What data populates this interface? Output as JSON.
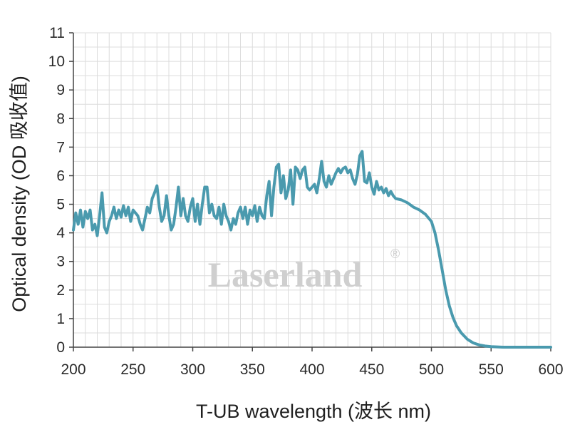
{
  "chart_data": {
    "type": "line",
    "xlabel": "T-UB wavelength (波长 nm)",
    "ylabel": "Optical density (OD 吸收值)",
    "xlim": [
      200,
      600
    ],
    "ylim": [
      0,
      11
    ],
    "x_ticks": [
      "200",
      "250",
      "300",
      "350",
      "400",
      "450",
      "500",
      "550",
      "600"
    ],
    "y_ticks": [
      "0",
      "1",
      "2",
      "3",
      "4",
      "5",
      "6",
      "7",
      "8",
      "9",
      "10",
      "11"
    ],
    "grid": true,
    "line_color": "#4a9aae",
    "grid_color": "#dcdcdc",
    "watermark": {
      "text": "Laserland",
      "mark": "®"
    },
    "series": [
      {
        "values": [
          [
            200,
            4.1
          ],
          [
            202,
            4.7
          ],
          [
            204,
            4.3
          ],
          [
            206,
            4.8
          ],
          [
            208,
            4.2
          ],
          [
            210,
            4.75
          ],
          [
            212,
            4.5
          ],
          [
            214,
            4.8
          ],
          [
            216,
            4.1
          ],
          [
            218,
            4.3
          ],
          [
            220,
            3.9
          ],
          [
            222,
            4.6
          ],
          [
            224,
            5.4
          ],
          [
            226,
            4.2
          ],
          [
            228,
            4.0
          ],
          [
            230,
            4.4
          ],
          [
            232,
            4.6
          ],
          [
            234,
            4.9
          ],
          [
            236,
            4.5
          ],
          [
            238,
            4.8
          ],
          [
            240,
            4.55
          ],
          [
            242,
            4.95
          ],
          [
            244,
            4.6
          ],
          [
            246,
            4.9
          ],
          [
            248,
            4.4
          ],
          [
            250,
            4.8
          ],
          [
            252,
            4.7
          ],
          [
            254,
            4.6
          ],
          [
            256,
            4.3
          ],
          [
            258,
            4.1
          ],
          [
            260,
            4.5
          ],
          [
            262,
            4.9
          ],
          [
            264,
            4.7
          ],
          [
            266,
            5.2
          ],
          [
            268,
            5.4
          ],
          [
            270,
            5.65
          ],
          [
            272,
            4.9
          ],
          [
            274,
            4.4
          ],
          [
            276,
            4.6
          ],
          [
            278,
            5.3
          ],
          [
            280,
            4.6
          ],
          [
            282,
            4.1
          ],
          [
            284,
            4.3
          ],
          [
            286,
            4.9
          ],
          [
            288,
            5.6
          ],
          [
            290,
            4.6
          ],
          [
            292,
            5.2
          ],
          [
            294,
            4.6
          ],
          [
            296,
            4.4
          ],
          [
            298,
            4.9
          ],
          [
            300,
            5.2
          ],
          [
            302,
            4.4
          ],
          [
            304,
            5.0
          ],
          [
            306,
            4.3
          ],
          [
            308,
            5.0
          ],
          [
            310,
            5.6
          ],
          [
            312,
            5.6
          ],
          [
            314,
            4.7
          ],
          [
            316,
            5.0
          ],
          [
            318,
            4.6
          ],
          [
            320,
            4.5
          ],
          [
            322,
            4.9
          ],
          [
            324,
            4.3
          ],
          [
            326,
            5.0
          ],
          [
            328,
            4.6
          ],
          [
            330,
            4.4
          ],
          [
            332,
            4.1
          ],
          [
            334,
            4.5
          ],
          [
            336,
            4.3
          ],
          [
            338,
            4.7
          ],
          [
            340,
            4.9
          ],
          [
            342,
            4.5
          ],
          [
            344,
            4.9
          ],
          [
            346,
            4.3
          ],
          [
            348,
            4.8
          ],
          [
            350,
            4.6
          ],
          [
            352,
            4.95
          ],
          [
            354,
            4.4
          ],
          [
            356,
            4.9
          ],
          [
            358,
            4.6
          ],
          [
            360,
            4.5
          ],
          [
            362,
            5.3
          ],
          [
            364,
            5.8
          ],
          [
            366,
            4.6
          ],
          [
            368,
            5.6
          ],
          [
            370,
            6.3
          ],
          [
            372,
            6.4
          ],
          [
            374,
            5.4
          ],
          [
            376,
            6.0
          ],
          [
            378,
            5.2
          ],
          [
            380,
            5.5
          ],
          [
            382,
            6.2
          ],
          [
            384,
            5.0
          ],
          [
            386,
            6.3
          ],
          [
            388,
            6.2
          ],
          [
            390,
            5.9
          ],
          [
            392,
            6.2
          ],
          [
            394,
            6.3
          ],
          [
            396,
            5.6
          ],
          [
            398,
            5.5
          ],
          [
            400,
            5.6
          ],
          [
            402,
            5.7
          ],
          [
            404,
            5.4
          ],
          [
            406,
            5.9
          ],
          [
            408,
            6.5
          ],
          [
            410,
            5.8
          ],
          [
            412,
            5.6
          ],
          [
            414,
            6.0
          ],
          [
            416,
            5.7
          ],
          [
            418,
            5.9
          ],
          [
            420,
            6.1
          ],
          [
            422,
            6.25
          ],
          [
            424,
            6.1
          ],
          [
            426,
            6.25
          ],
          [
            428,
            6.3
          ],
          [
            430,
            6.1
          ],
          [
            432,
            6.2
          ],
          [
            434,
            5.9
          ],
          [
            436,
            5.7
          ],
          [
            438,
            6.05
          ],
          [
            440,
            6.7
          ],
          [
            442,
            6.85
          ],
          [
            444,
            5.8
          ],
          [
            446,
            5.75
          ],
          [
            448,
            6.1
          ],
          [
            450,
            5.6
          ],
          [
            452,
            5.35
          ],
          [
            454,
            5.8
          ],
          [
            456,
            5.5
          ],
          [
            458,
            5.6
          ],
          [
            460,
            5.4
          ],
          [
            462,
            5.55
          ],
          [
            464,
            5.3
          ],
          [
            466,
            5.45
          ],
          [
            468,
            5.3
          ],
          [
            470,
            5.2
          ],
          [
            475,
            5.15
          ],
          [
            480,
            5.05
          ],
          [
            485,
            4.9
          ],
          [
            490,
            4.8
          ],
          [
            495,
            4.65
          ],
          [
            500,
            4.4
          ],
          [
            503,
            4.0
          ],
          [
            506,
            3.4
          ],
          [
            509,
            2.7
          ],
          [
            512,
            2.0
          ],
          [
            515,
            1.45
          ],
          [
            518,
            1.05
          ],
          [
            521,
            0.75
          ],
          [
            525,
            0.5
          ],
          [
            530,
            0.28
          ],
          [
            535,
            0.15
          ],
          [
            540,
            0.08
          ],
          [
            545,
            0.04
          ],
          [
            550,
            0.02
          ],
          [
            560,
            0.0
          ],
          [
            600,
            0.0
          ]
        ]
      }
    ]
  }
}
